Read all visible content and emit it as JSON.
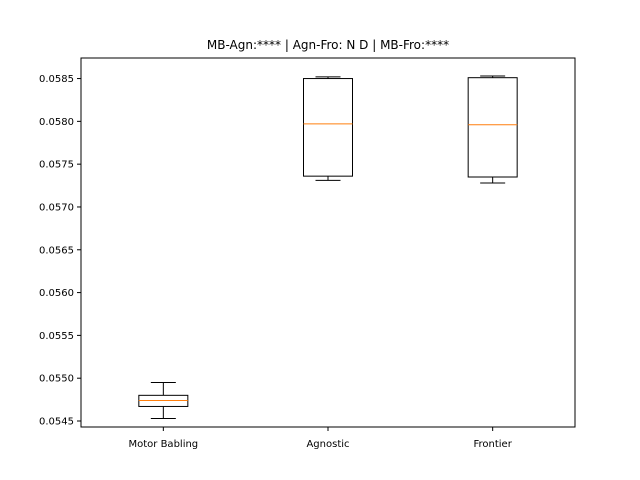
{
  "chart_data": {
    "type": "box",
    "title": "MB-Agn:**** | Agn-Fro: N D | MB-Fro:****",
    "xlabel": "",
    "ylabel": "",
    "ylim": [
      0.05443,
      0.05874
    ],
    "yticks": [
      "0.0545",
      "0.0550",
      "0.0555",
      "0.0560",
      "0.0565",
      "0.0570",
      "0.0575",
      "0.0580",
      "0.0585"
    ],
    "categories": [
      "Motor Babling",
      "Agnostic",
      "Frontier"
    ],
    "boxes": [
      {
        "whisker_low": 0.05453,
        "q1": 0.05467,
        "median": 0.05474,
        "q3": 0.0548,
        "whisker_high": 0.05495
      },
      {
        "whisker_low": 0.05731,
        "q1": 0.05736,
        "median": 0.05797,
        "q3": 0.0585,
        "whisker_high": 0.05852
      },
      {
        "whisker_low": 0.05728,
        "q1": 0.05735,
        "median": 0.05796,
        "q3": 0.05851,
        "whisker_high": 0.05853
      }
    ],
    "grid": false,
    "colors": {
      "box": "#000000",
      "median": "#ff7f0e",
      "background": "#ffffff"
    }
  }
}
